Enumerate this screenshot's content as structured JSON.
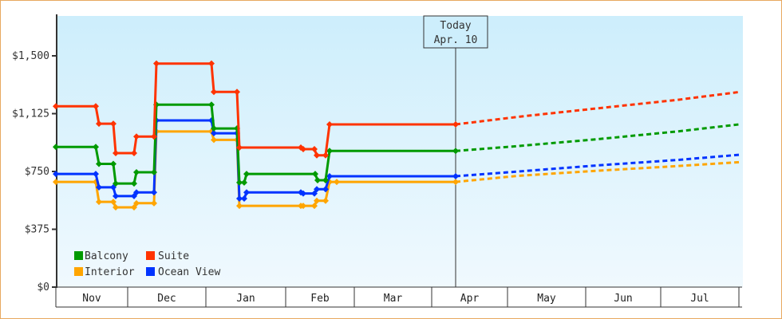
{
  "chart_data": {
    "type": "line",
    "title": "",
    "xlabel": "",
    "ylabel": "",
    "ylim": [
      0,
      1750
    ],
    "y_ticks": [
      {
        "label": "$0",
        "value": 0
      },
      {
        "label": "$375",
        "value": 375
      },
      {
        "label": "$750",
        "value": 750
      },
      {
        "label": "$1,125",
        "value": 1125
      },
      {
        "label": "$1,500",
        "value": 1500
      }
    ],
    "x_categories": [
      "Nov",
      "Dec",
      "Jan",
      "Feb",
      "Mar",
      "Apr",
      "May",
      "Jun",
      "Jul"
    ],
    "grid": false,
    "legend_position": "lower-left",
    "today_marker": {
      "line1": "Today",
      "line2": "Apr. 10"
    },
    "series": [
      {
        "name": "Balcony",
        "color": "#009a00",
        "history": [
          [
            70,
            909
          ],
          [
            120,
            909
          ],
          [
            124,
            799
          ],
          [
            142,
            799
          ],
          [
            145,
            672
          ],
          [
            168,
            672
          ],
          [
            171,
            745
          ],
          [
            193,
            745
          ],
          [
            196,
            1183
          ],
          [
            265,
            1183
          ],
          [
            268,
            1029
          ],
          [
            297,
            1029
          ],
          [
            300,
            678
          ],
          [
            306,
            678
          ],
          [
            309,
            734
          ],
          [
            395,
            734
          ],
          [
            398,
            693
          ],
          [
            408,
            693
          ],
          [
            413,
            883
          ],
          [
            571,
            883
          ]
        ],
        "forecast": [
          [
            571,
            883
          ],
          [
            650,
            915
          ],
          [
            750,
            960
          ],
          [
            850,
            1010
          ],
          [
            926,
            1055
          ]
        ]
      },
      {
        "name": "Suite",
        "color": "#ff3300",
        "history": [
          [
            70,
            1173
          ],
          [
            120,
            1173
          ],
          [
            124,
            1060
          ],
          [
            142,
            1060
          ],
          [
            145,
            869
          ],
          [
            168,
            869
          ],
          [
            171,
            976
          ],
          [
            193,
            976
          ],
          [
            196,
            1450
          ],
          [
            265,
            1450
          ],
          [
            268,
            1266
          ],
          [
            297,
            1266
          ],
          [
            300,
            905
          ],
          [
            377,
            905
          ],
          [
            380,
            895
          ],
          [
            394,
            895
          ],
          [
            397,
            855
          ],
          [
            408,
            855
          ],
          [
            413,
            1055
          ],
          [
            571,
            1055
          ]
        ],
        "forecast": [
          [
            571,
            1055
          ],
          [
            650,
            1105
          ],
          [
            750,
            1160
          ],
          [
            850,
            1215
          ],
          [
            926,
            1265
          ]
        ]
      },
      {
        "name": "Interior",
        "color": "#ffa500",
        "history": [
          [
            70,
            682
          ],
          [
            120,
            682
          ],
          [
            124,
            553
          ],
          [
            142,
            553
          ],
          [
            145,
            517
          ],
          [
            168,
            517
          ],
          [
            171,
            544
          ],
          [
            193,
            544
          ],
          [
            196,
            1009
          ],
          [
            265,
            1009
          ],
          [
            268,
            955
          ],
          [
            297,
            955
          ],
          [
            300,
            527
          ],
          [
            377,
            527
          ],
          [
            380,
            527
          ],
          [
            394,
            527
          ],
          [
            397,
            560
          ],
          [
            408,
            560
          ],
          [
            413,
            682
          ],
          [
            422,
            682
          ],
          [
            571,
            682
          ]
        ],
        "forecast": [
          [
            571,
            682
          ],
          [
            650,
            722
          ],
          [
            750,
            755
          ],
          [
            850,
            785
          ],
          [
            926,
            810
          ]
        ]
      },
      {
        "name": "Ocean View",
        "color": "#0033ff",
        "history": [
          [
            70,
            734
          ],
          [
            120,
            734
          ],
          [
            124,
            647
          ],
          [
            142,
            647
          ],
          [
            145,
            590
          ],
          [
            168,
            590
          ],
          [
            171,
            614
          ],
          [
            193,
            614
          ],
          [
            196,
            1081
          ],
          [
            265,
            1081
          ],
          [
            268,
            998
          ],
          [
            297,
            998
          ],
          [
            300,
            574
          ],
          [
            306,
            574
          ],
          [
            309,
            614
          ],
          [
            377,
            614
          ],
          [
            380,
            607
          ],
          [
            394,
            607
          ],
          [
            397,
            635
          ],
          [
            408,
            635
          ],
          [
            413,
            719
          ],
          [
            571,
            719
          ]
        ],
        "forecast": [
          [
            571,
            719
          ],
          [
            650,
            750
          ],
          [
            750,
            790
          ],
          [
            850,
            825
          ],
          [
            926,
            858
          ]
        ]
      }
    ]
  },
  "axis": {
    "y_labels": [
      "$1,500",
      "$1,125",
      "$750",
      "$375",
      "$0"
    ],
    "months": [
      "Nov",
      "Dec",
      "Jan",
      "Feb",
      "Mar",
      "Apr",
      "May",
      "Jun",
      "Jul"
    ]
  },
  "today": {
    "line1": "Today",
    "line2": "Apr. 10"
  },
  "legend": {
    "items": [
      {
        "label": "Balcony",
        "color": "#009a00"
      },
      {
        "label": "Suite",
        "color": "#ff3300"
      },
      {
        "label": "Interior",
        "color": "#ffa500"
      },
      {
        "label": "Ocean View",
        "color": "#0033ff"
      }
    ]
  }
}
